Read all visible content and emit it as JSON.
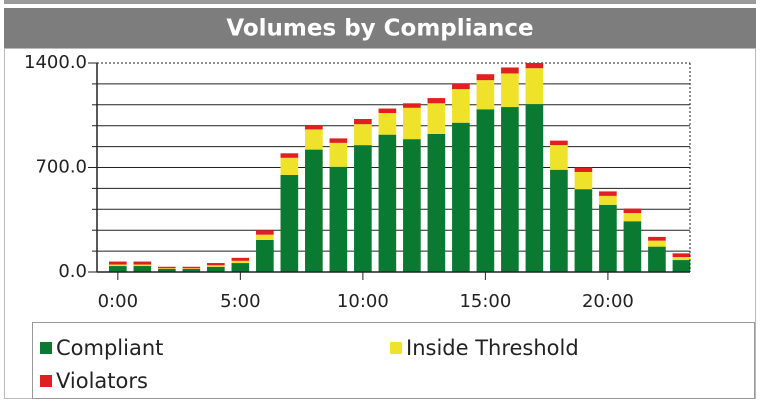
{
  "chart_data": {
    "type": "stacked_bar",
    "title": "Volumes by Compliance",
    "x": [
      0,
      1,
      2,
      3,
      4,
      5,
      6,
      7,
      8,
      9,
      10,
      11,
      12,
      13,
      14,
      15,
      16,
      17,
      18,
      19,
      20,
      21,
      22,
      23
    ],
    "series": [
      {
        "name": "Compliant",
        "color": "#0a7a32",
        "values": [
          40,
          40,
          20,
          20,
          35,
          60,
          215,
          650,
          820,
          705,
          850,
          920,
          890,
          925,
          1000,
          1090,
          1105,
          1125,
          685,
          555,
          450,
          340,
          170,
          80
        ]
      },
      {
        "name": "Inside Threshold",
        "color": "#efe22a",
        "values": [
          10,
          10,
          5,
          5,
          10,
          15,
          35,
          115,
          135,
          160,
          140,
          145,
          210,
          205,
          225,
          195,
          225,
          240,
          165,
          115,
          60,
          55,
          40,
          20
        ]
      },
      {
        "name": "Violators",
        "color": "#e02020",
        "values": [
          20,
          20,
          10,
          10,
          15,
          20,
          30,
          30,
          30,
          30,
          35,
          30,
          30,
          35,
          35,
          40,
          40,
          35,
          30,
          30,
          30,
          30,
          25,
          25
        ]
      }
    ],
    "xlim": [
      -0.85,
      23.35
    ],
    "xticks": [
      {
        "value": 0,
        "label": "0:00"
      },
      {
        "value": 5,
        "label": "5:00"
      },
      {
        "value": 10,
        "label": "10:00"
      },
      {
        "value": 15,
        "label": "15:00"
      },
      {
        "value": 20,
        "label": "20:00"
      }
    ],
    "ylim": [
      0,
      1400
    ],
    "yticks": [
      {
        "value": 0,
        "label": "0.0"
      },
      {
        "value": 700,
        "label": "700.0"
      },
      {
        "value": 1400,
        "label": "1400.0"
      }
    ],
    "yminorticks": [
      140,
      280,
      420,
      560,
      840,
      980,
      1120,
      1260
    ],
    "grid": true
  }
}
